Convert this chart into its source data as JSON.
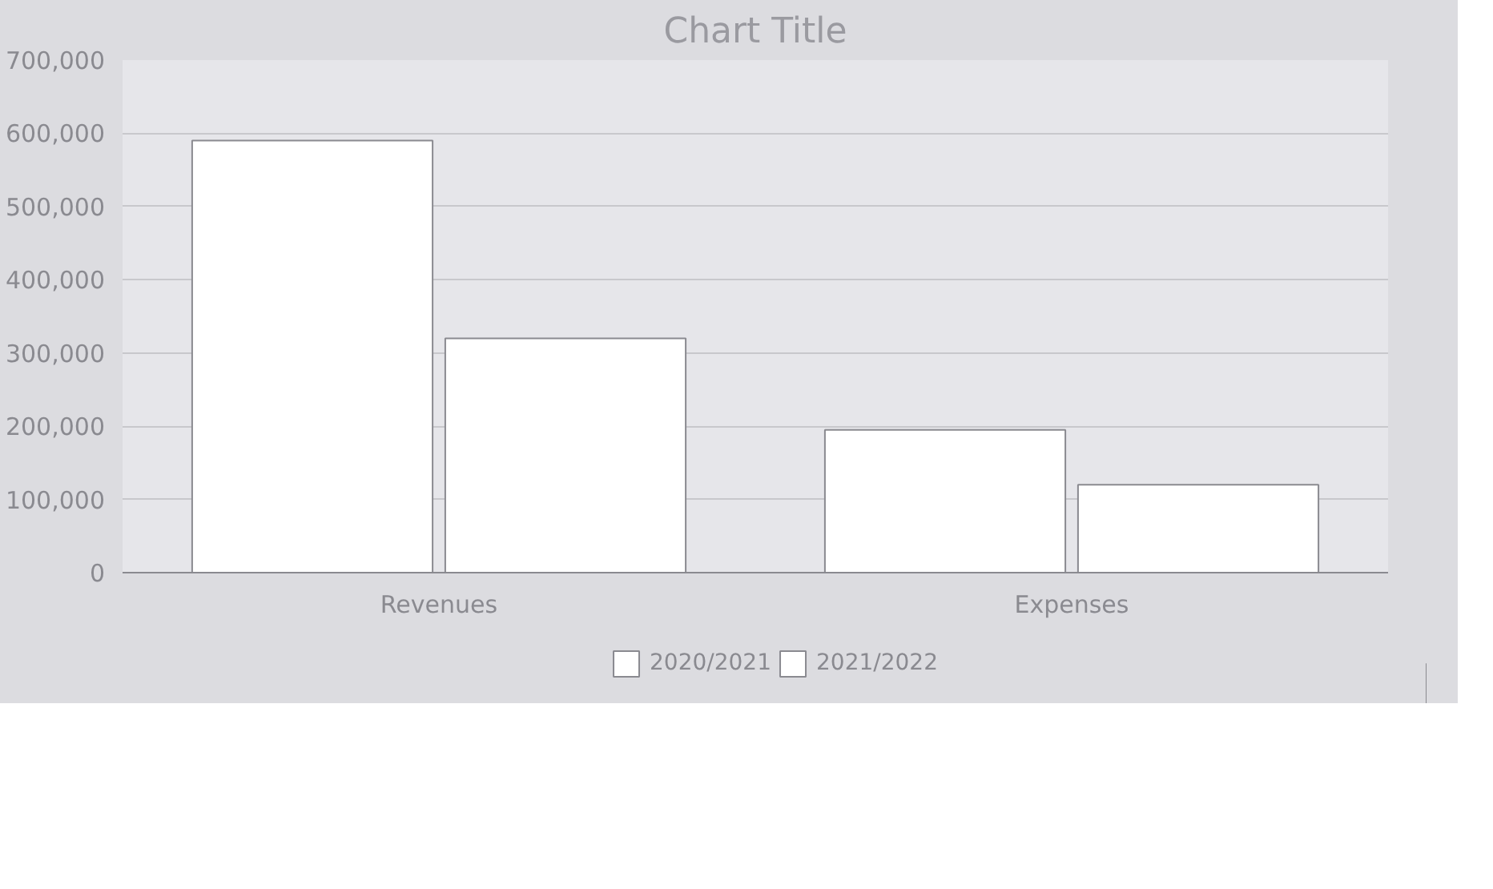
{
  "chart_data": {
    "type": "bar",
    "title": "Chart Title",
    "categories": [
      "Revenues",
      "Expenses"
    ],
    "series": [
      {
        "name": "2020/2021",
        "color": "#ffffff",
        "values": [
          590000,
          195000
        ]
      },
      {
        "name": "2021/2022",
        "color": "#ffffff",
        "values": [
          320000,
          120000
        ]
      }
    ],
    "ylim": [
      0,
      700000
    ],
    "yticks": [
      {
        "value": 0,
        "label": "0"
      },
      {
        "value": 100000,
        "label": "100,000"
      },
      {
        "value": 200000,
        "label": "200,000"
      },
      {
        "value": 300000,
        "label": "300,000"
      },
      {
        "value": 400000,
        "label": "400,000"
      },
      {
        "value": 500000,
        "label": "500,000"
      },
      {
        "value": 600000,
        "label": "600,000"
      },
      {
        "value": 700000,
        "label": "700,000"
      }
    ],
    "grid": "y",
    "legend": "bottom"
  }
}
